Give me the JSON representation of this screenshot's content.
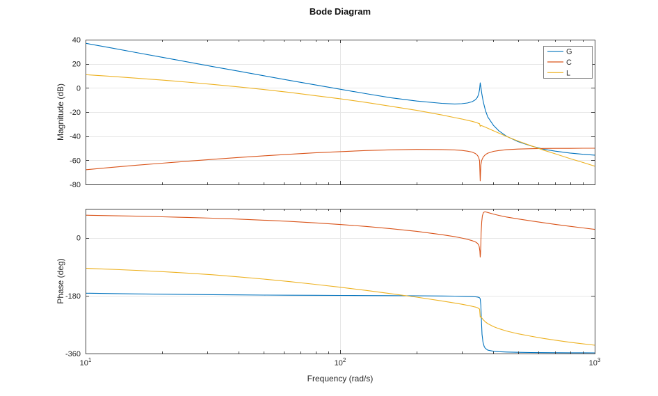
{
  "figure": {
    "title": "Bode Diagram",
    "background": "#ffffff"
  },
  "style": {
    "axis_color": "#3f3f3f",
    "grid_color": "#e6e6e6",
    "text_color": "#262626",
    "legend_border_color": "#808080",
    "series_palette": [
      "#0072BD",
      "#D95319",
      "#EDB120"
    ]
  },
  "chart_data": [
    {
      "type": "line",
      "panel": "magnitude",
      "title": "Bode Diagram",
      "xlabel": "",
      "ylabel": "Magnitude (dB)",
      "xscale": "log",
      "xlim": [
        10,
        1000
      ],
      "ylim": [
        -80,
        40
      ],
      "xticks": [
        10,
        100,
        1000
      ],
      "xtick_labels": [
        "10^1",
        "10^2",
        "10^3"
      ],
      "yticks": [
        40,
        20,
        0,
        -20,
        -40,
        -60,
        -80
      ],
      "grid": true,
      "legend": {
        "position": "northeast",
        "entries": [
          "G",
          "C",
          "L"
        ]
      },
      "series": [
        {
          "name": "G",
          "color": "#0072BD",
          "points": [
            [
              10,
              37
            ],
            [
              12.6,
              33.2
            ],
            [
              15.8,
              29.3
            ],
            [
              20,
              25.4
            ],
            [
              25.1,
              21.6
            ],
            [
              31.6,
              17.7
            ],
            [
              39.8,
              13.9
            ],
            [
              50.1,
              10.1
            ],
            [
              63.1,
              6.3
            ],
            [
              79.4,
              2.6
            ],
            [
              100,
              -1.1
            ],
            [
              126,
              -4.7
            ],
            [
              158,
              -8.1
            ],
            [
              200,
              -10.9
            ],
            [
              251,
              -12.8
            ],
            [
              282,
              -13.3
            ],
            [
              300,
              -13.1
            ],
            [
              316,
              -12.5
            ],
            [
              330,
              -11.4
            ],
            [
              340,
              -9.8
            ],
            [
              346,
              -7.8
            ],
            [
              350,
              -5.3
            ],
            [
              353,
              -1.2
            ],
            [
              355,
              4.2
            ],
            [
              357,
              1.0
            ],
            [
              360,
              -4.5
            ],
            [
              365,
              -11.5
            ],
            [
              372,
              -18.5
            ],
            [
              380,
              -24
            ],
            [
              400,
              -31
            ],
            [
              420,
              -35.5
            ],
            [
              450,
              -40
            ],
            [
              500,
              -44.5
            ],
            [
              560,
              -48
            ],
            [
              630,
              -50.8
            ],
            [
              700,
              -52.4
            ],
            [
              800,
              -54
            ],
            [
              900,
              -55
            ],
            [
              1000,
              -55.7
            ]
          ]
        },
        {
          "name": "C",
          "color": "#D95319",
          "points": [
            [
              10,
              -67.8
            ],
            [
              12.6,
              -65.9
            ],
            [
              15.8,
              -64.1
            ],
            [
              20,
              -62.4
            ],
            [
              25.1,
              -60.8
            ],
            [
              31.6,
              -59.2
            ],
            [
              39.8,
              -57.7
            ],
            [
              50.1,
              -56.3
            ],
            [
              63.1,
              -55.0
            ],
            [
              79.4,
              -53.8
            ],
            [
              100,
              -52.8
            ],
            [
              126,
              -51.9
            ],
            [
              158,
              -51.3
            ],
            [
              200,
              -51.0
            ],
            [
              251,
              -51.1
            ],
            [
              282,
              -51.4
            ],
            [
              300,
              -51.8
            ],
            [
              316,
              -52.4
            ],
            [
              330,
              -53.2
            ],
            [
              340,
              -54.4
            ],
            [
              346,
              -55.8
            ],
            [
              350,
              -57.5
            ],
            [
              353,
              -60.5
            ],
            [
              355,
              -77
            ],
            [
              357,
              -64
            ],
            [
              360,
              -60
            ],
            [
              365,
              -57.2
            ],
            [
              372,
              -55.3
            ],
            [
              380,
              -54.1
            ],
            [
              400,
              -52.6
            ],
            [
              420,
              -51.9
            ],
            [
              450,
              -51.2
            ],
            [
              500,
              -50.7
            ],
            [
              560,
              -50.4
            ],
            [
              630,
              -50.2
            ],
            [
              700,
              -50.1
            ],
            [
              800,
              -50.1
            ],
            [
              900,
              -50
            ],
            [
              1000,
              -50
            ]
          ]
        },
        {
          "name": "L",
          "color": "#EDB120",
          "points": [
            [
              10,
              11
            ],
            [
              12.6,
              9.6
            ],
            [
              15.8,
              8.1
            ],
            [
              20,
              6.5
            ],
            [
              25.1,
              4.8
            ],
            [
              31.6,
              2.9
            ],
            [
              39.8,
              0.9
            ],
            [
              50.1,
              -1.3
            ],
            [
              63.1,
              -3.7
            ],
            [
              79.4,
              -6.3
            ],
            [
              100,
              -9.0
            ],
            [
              126,
              -12.0
            ],
            [
              158,
              -15.2
            ],
            [
              200,
              -18.6
            ],
            [
              251,
              -22.4
            ],
            [
              282,
              -24.6
            ],
            [
              300,
              -25.7
            ],
            [
              316,
              -26.8
            ],
            [
              330,
              -27.7
            ],
            [
              340,
              -28.5
            ],
            [
              346,
              -29.0
            ],
            [
              350,
              -29.4
            ],
            [
              353,
              -29.7
            ],
            [
              355,
              -31.8
            ],
            [
              357,
              -31.2
            ],
            [
              360,
              -31.3
            ],
            [
              365,
              -31.8
            ],
            [
              372,
              -32.5
            ],
            [
              380,
              -33.4
            ],
            [
              400,
              -35.5
            ],
            [
              420,
              -37.5
            ],
            [
              450,
              -40.2
            ],
            [
              500,
              -44.0
            ],
            [
              560,
              -47.8
            ],
            [
              630,
              -51.6
            ],
            [
              700,
              -54.6
            ],
            [
              800,
              -58.6
            ],
            [
              900,
              -61.8
            ],
            [
              1000,
              -64.8
            ]
          ]
        }
      ]
    },
    {
      "type": "line",
      "panel": "phase",
      "title": "",
      "xlabel": "Frequency (rad/s)",
      "ylabel": "Phase (deg)",
      "xscale": "log",
      "xlim": [
        10,
        1000
      ],
      "ylim": [
        -360,
        90
      ],
      "xticks": [
        10,
        100,
        1000
      ],
      "xtick_labels": [
        "10^1",
        "10^2",
        "10^3"
      ],
      "yticks": [
        0,
        -180,
        -360
      ],
      "grid": true,
      "series": [
        {
          "name": "G",
          "color": "#0072BD",
          "points": [
            [
              10,
              -172.5
            ],
            [
              12.6,
              -173.6
            ],
            [
              15.8,
              -174.6
            ],
            [
              20,
              -175.5
            ],
            [
              25.1,
              -176.3
            ],
            [
              31.6,
              -177.0
            ],
            [
              39.8,
              -177.6
            ],
            [
              50.1,
              -178.2
            ],
            [
              63.1,
              -178.6
            ],
            [
              79.4,
              -179.0
            ],
            [
              100,
              -179.4
            ],
            [
              126,
              -179.7
            ],
            [
              158,
              -180.1
            ],
            [
              200,
              -180.5
            ],
            [
              251,
              -181.1
            ],
            [
              282,
              -181.6
            ],
            [
              300,
              -181.9
            ],
            [
              316,
              -182.3
            ],
            [
              330,
              -182.9
            ],
            [
              340,
              -183.6
            ],
            [
              346,
              -184.4
            ],
            [
              350,
              -185.3
            ],
            [
              353,
              -186.8
            ],
            [
              355,
              -190
            ],
            [
              357,
              -210
            ],
            [
              359,
              -260
            ],
            [
              361,
              -300
            ],
            [
              364,
              -325
            ],
            [
              368,
              -338
            ],
            [
              372,
              -344
            ],
            [
              380,
              -349.5
            ],
            [
              400,
              -352.8
            ],
            [
              420,
              -354.2
            ],
            [
              450,
              -355.3
            ],
            [
              500,
              -356.2
            ],
            [
              560,
              -356.8
            ],
            [
              630,
              -357.2
            ],
            [
              700,
              -357.4
            ],
            [
              800,
              -357.6
            ],
            [
              900,
              -357.7
            ],
            [
              1000,
              -357.8
            ]
          ]
        },
        {
          "name": "C",
          "color": "#D95319",
          "points": [
            [
              10,
              70
            ],
            [
              12.6,
              68.6
            ],
            [
              15.8,
              67
            ],
            [
              20,
              65.2
            ],
            [
              25.1,
              63.1
            ],
            [
              31.6,
              60.7
            ],
            [
              39.8,
              57.9
            ],
            [
              50.1,
              54.6
            ],
            [
              63.1,
              50.8
            ],
            [
              79.4,
              46.3
            ],
            [
              100,
              41.2
            ],
            [
              126,
              35.2
            ],
            [
              158,
              28.2
            ],
            [
              200,
              19.8
            ],
            [
              251,
              9.6
            ],
            [
              282,
              3.2
            ],
            [
              300,
              -0.8
            ],
            [
              316,
              -4.8
            ],
            [
              330,
              -9
            ],
            [
              340,
              -13
            ],
            [
              346,
              -17
            ],
            [
              350,
              -22
            ],
            [
              352,
              -28
            ],
            [
              354,
              -42
            ],
            [
              355,
              -60
            ],
            [
              356,
              -50
            ],
            [
              357,
              -20
            ],
            [
              358,
              15
            ],
            [
              360,
              50
            ],
            [
              362,
              68
            ],
            [
              365,
              77
            ],
            [
              368,
              80
            ],
            [
              372,
              80.5
            ],
            [
              380,
              78.5
            ],
            [
              400,
              73.5
            ],
            [
              420,
              69.5
            ],
            [
              450,
              64.5
            ],
            [
              500,
              58.5
            ],
            [
              560,
              52.5
            ],
            [
              630,
              46.5
            ],
            [
              700,
              41.5
            ],
            [
              800,
              35.5
            ],
            [
              900,
              30.5
            ],
            [
              1000,
              26
            ]
          ]
        },
        {
          "name": "L",
          "color": "#EDB120",
          "points": [
            [
              10,
              -95
            ],
            [
              12.6,
              -98
            ],
            [
              15.8,
              -101.5
            ],
            [
              20,
              -105.3
            ],
            [
              25.1,
              -109.8
            ],
            [
              31.6,
              -115.2
            ],
            [
              39.8,
              -121.5
            ],
            [
              50.1,
              -128.5
            ],
            [
              63.1,
              -136.3
            ],
            [
              79.4,
              -144.8
            ],
            [
              100,
              -153.8
            ],
            [
              126,
              -163.5
            ],
            [
              158,
              -173.8
            ],
            [
              200,
              -184.8
            ],
            [
              251,
              -196.5
            ],
            [
              282,
              -203
            ],
            [
              300,
              -206.7
            ],
            [
              316,
              -210
            ],
            [
              330,
              -213
            ],
            [
              340,
              -215.5
            ],
            [
              346,
              -217.5
            ],
            [
              350,
              -219.5
            ],
            [
              353,
              -222
            ],
            [
              355,
              -247
            ],
            [
              357,
              -245
            ],
            [
              360,
              -249
            ],
            [
              365,
              -255
            ],
            [
              372,
              -261.5
            ],
            [
              380,
              -267
            ],
            [
              400,
              -276
            ],
            [
              420,
              -282.5
            ],
            [
              450,
              -290
            ],
            [
              500,
              -298.5
            ],
            [
              560,
              -306
            ],
            [
              630,
              -313
            ],
            [
              700,
              -318.5
            ],
            [
              800,
              -325
            ],
            [
              900,
              -330
            ],
            [
              1000,
              -334
            ]
          ]
        }
      ]
    }
  ]
}
